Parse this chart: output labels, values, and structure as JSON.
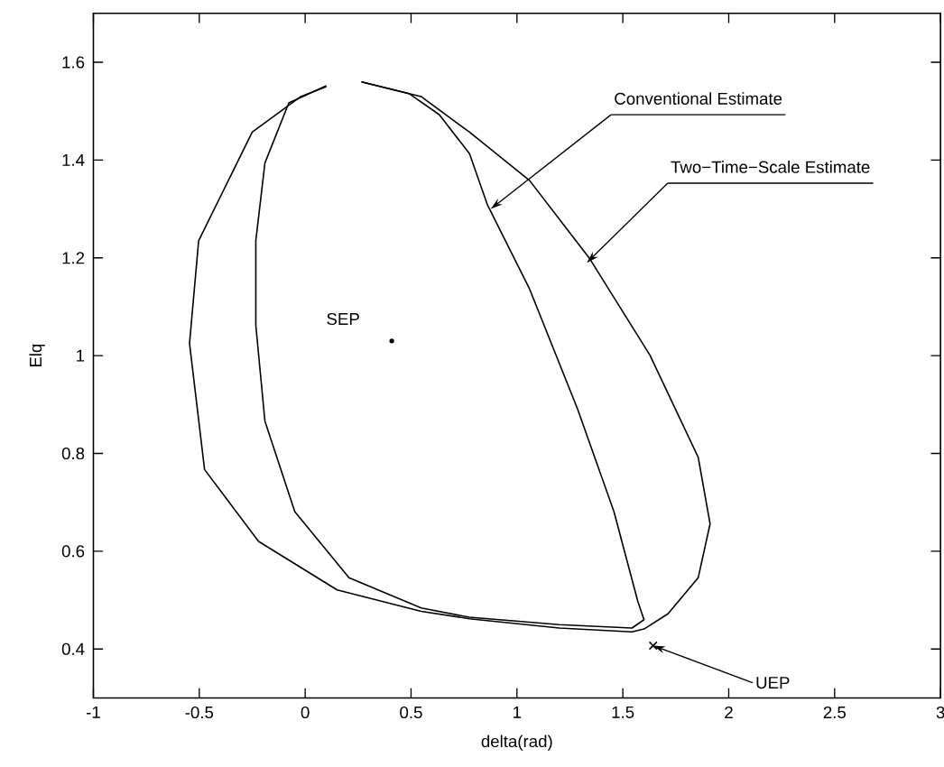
{
  "chart_data": {
    "type": "line",
    "xlabel": "delta(rad)",
    "ylabel": "Elq",
    "xlim": [
      -1,
      3
    ],
    "ylim": [
      0.3,
      1.7
    ],
    "xticks": [
      -1,
      -0.5,
      0,
      0.5,
      1,
      1.5,
      2,
      2.5,
      3
    ],
    "yticks": [
      0.4,
      0.6,
      0.8,
      1,
      1.2,
      1.4,
      1.6
    ],
    "grid": false,
    "series": [
      {
        "color": "#000000",
        "marker": "none",
        "x": [
          0.266,
          0.547,
          0.776,
          1.06,
          1.344,
          1.628,
          1.856,
          1.912,
          1.856,
          1.713,
          1.6,
          1.543,
          1.2,
          0.776,
          0.548,
          0.151,
          -0.22,
          -0.475,
          -0.546,
          -0.503,
          -0.25,
          -0.02,
          0.1
        ],
        "values": [
          1.56,
          1.53,
          1.457,
          1.358,
          1.198,
          1.001,
          0.792,
          0.656,
          0.546,
          0.472,
          0.441,
          0.435,
          0.443,
          0.462,
          0.477,
          0.521,
          0.62,
          0.767,
          1.025,
          1.235,
          1.457,
          1.53,
          1.55
        ]
      },
      {
        "color": "#000000",
        "marker": "none",
        "x": [
          0.266,
          0.49,
          0.633,
          0.776,
          0.861,
          1.06,
          1.287,
          1.458,
          1.571,
          1.6,
          1.543,
          1.2,
          0.776,
          0.548,
          0.207,
          -0.049,
          -0.19,
          -0.233,
          -0.233,
          -0.19,
          -0.077,
          0.1
        ],
        "values": [
          1.56,
          1.536,
          1.493,
          1.413,
          1.308,
          1.136,
          0.89,
          0.681,
          0.497,
          0.46,
          0.443,
          0.45,
          0.465,
          0.484,
          0.546,
          0.681,
          0.866,
          1.062,
          1.235,
          1.394,
          1.517,
          1.552
        ]
      },
      {
        "type": "scatter",
        "color": "#000000",
        "marker": "circle",
        "x": [
          0.409
        ],
        "values": [
          1.03
        ]
      },
      {
        "type": "scatter",
        "color": "#000000",
        "marker": "cross",
        "x": [
          1.643
        ],
        "values": [
          0.407
        ]
      }
    ],
    "annotations": [
      {
        "text": "SEP",
        "x": 0.409,
        "y": 1.03
      },
      {
        "text": "Conventional Estimate",
        "x": 0.876,
        "y": 1.3
      },
      {
        "text": "Two−Time−Scale Estimate",
        "x": 1.33,
        "y": 1.19
      },
      {
        "text": "UEP",
        "x": 1.643,
        "y": 0.407
      }
    ]
  }
}
